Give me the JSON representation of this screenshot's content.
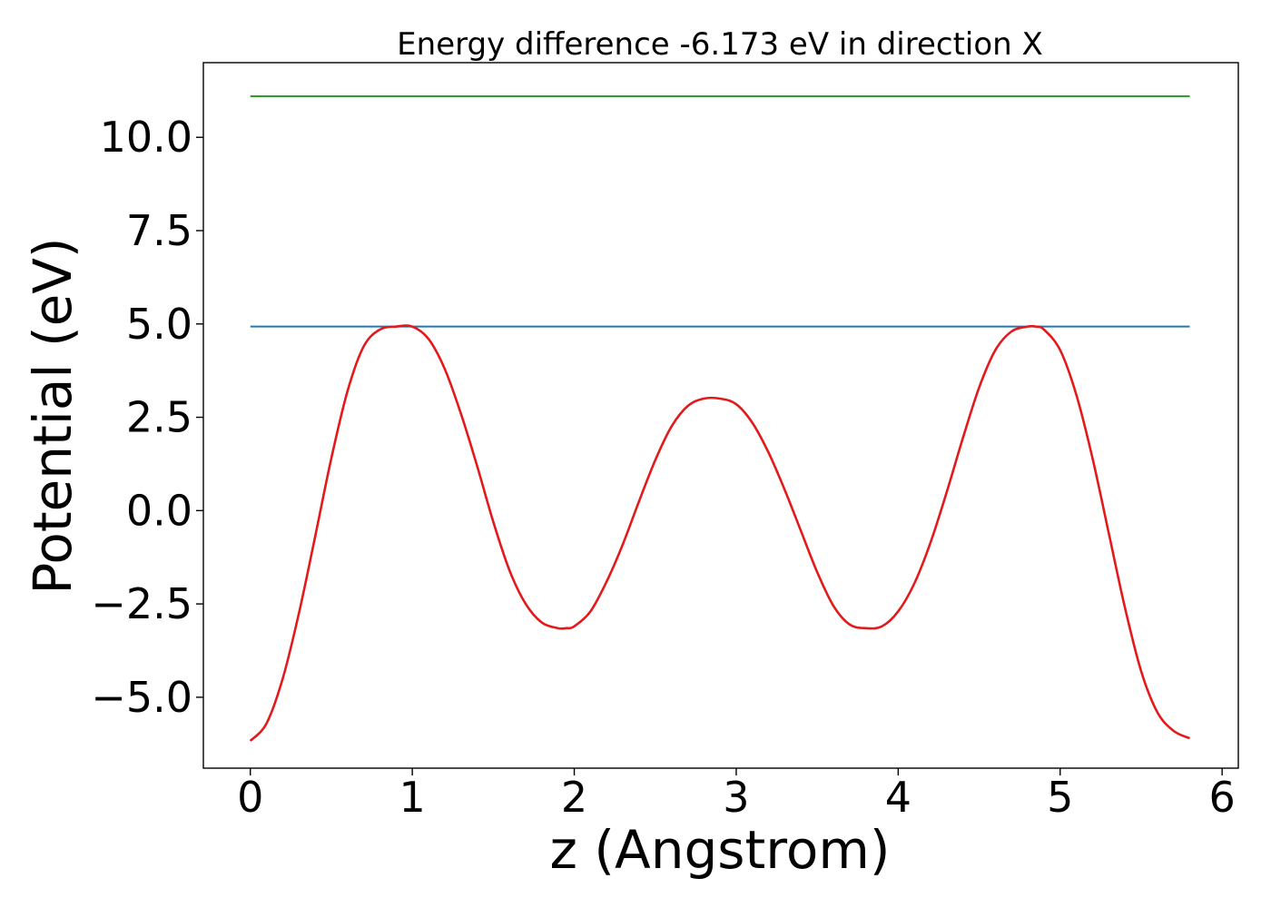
{
  "chart_data": {
    "type": "line",
    "title": "Energy difference -6.173 eV in direction X",
    "xlabel": "z (Angstrom)",
    "ylabel": "Potential (eV)",
    "xlim": [
      -0.29,
      6.1
    ],
    "ylim": [
      -6.9,
      12.0
    ],
    "xticks": [
      {
        "value": 0,
        "label": "0"
      },
      {
        "value": 1,
        "label": "1"
      },
      {
        "value": 2,
        "label": "2"
      },
      {
        "value": 3,
        "label": "3"
      },
      {
        "value": 4,
        "label": "4"
      },
      {
        "value": 5,
        "label": "5"
      },
      {
        "value": 6,
        "label": "6"
      }
    ],
    "yticks": [
      {
        "value": -5.0,
        "label": "−5.0"
      },
      {
        "value": -2.5,
        "label": "−2.5"
      },
      {
        "value": 0.0,
        "label": "0.0"
      },
      {
        "value": 2.5,
        "label": "2.5"
      },
      {
        "value": 5.0,
        "label": "5.0"
      },
      {
        "value": 7.5,
        "label": "7.5"
      },
      {
        "value": 10.0,
        "label": "10.0"
      }
    ],
    "grid": false,
    "legend": "none",
    "series": [
      {
        "color": "#2ca02c",
        "x": [
          0.0,
          5.8
        ],
        "y": [
          11.1,
          11.1
        ]
      },
      {
        "color": "#1f77b4",
        "x": [
          0.0,
          5.8
        ],
        "y": [
          4.93,
          4.93
        ]
      },
      {
        "color": "#e31a1c",
        "x": [
          0.0,
          0.1,
          0.2,
          0.3,
          0.4,
          0.5,
          0.6,
          0.7,
          0.8,
          0.9,
          1.0,
          1.1,
          1.2,
          1.3,
          1.4,
          1.5,
          1.6,
          1.7,
          1.8,
          1.9,
          1.95,
          2.0,
          2.1,
          2.2,
          2.3,
          2.4,
          2.5,
          2.6,
          2.7,
          2.8,
          2.9,
          3.0,
          3.1,
          3.2,
          3.3,
          3.4,
          3.5,
          3.6,
          3.7,
          3.8,
          3.9,
          4.0,
          4.1,
          4.2,
          4.3,
          4.4,
          4.5,
          4.6,
          4.7,
          4.8,
          4.85,
          4.9,
          5.0,
          5.1,
          5.2,
          5.3,
          5.4,
          5.5,
          5.6,
          5.7,
          5.8
        ],
        "y": [
          -6.17,
          -5.7,
          -4.5,
          -2.75,
          -0.7,
          1.4,
          3.2,
          4.4,
          4.85,
          4.93,
          4.93,
          4.6,
          3.8,
          2.6,
          1.2,
          -0.3,
          -1.6,
          -2.5,
          -3.0,
          -3.15,
          -3.15,
          -3.1,
          -2.7,
          -1.9,
          -0.9,
          0.25,
          1.35,
          2.25,
          2.8,
          3.0,
          3.0,
          2.85,
          2.35,
          1.55,
          0.55,
          -0.55,
          -1.65,
          -2.55,
          -3.05,
          -3.15,
          -3.1,
          -2.7,
          -1.95,
          -0.85,
          0.5,
          1.95,
          3.3,
          4.3,
          4.8,
          4.93,
          4.93,
          4.85,
          4.3,
          3.1,
          1.4,
          -0.6,
          -2.6,
          -4.3,
          -5.4,
          -5.9,
          -6.1
        ]
      }
    ]
  }
}
